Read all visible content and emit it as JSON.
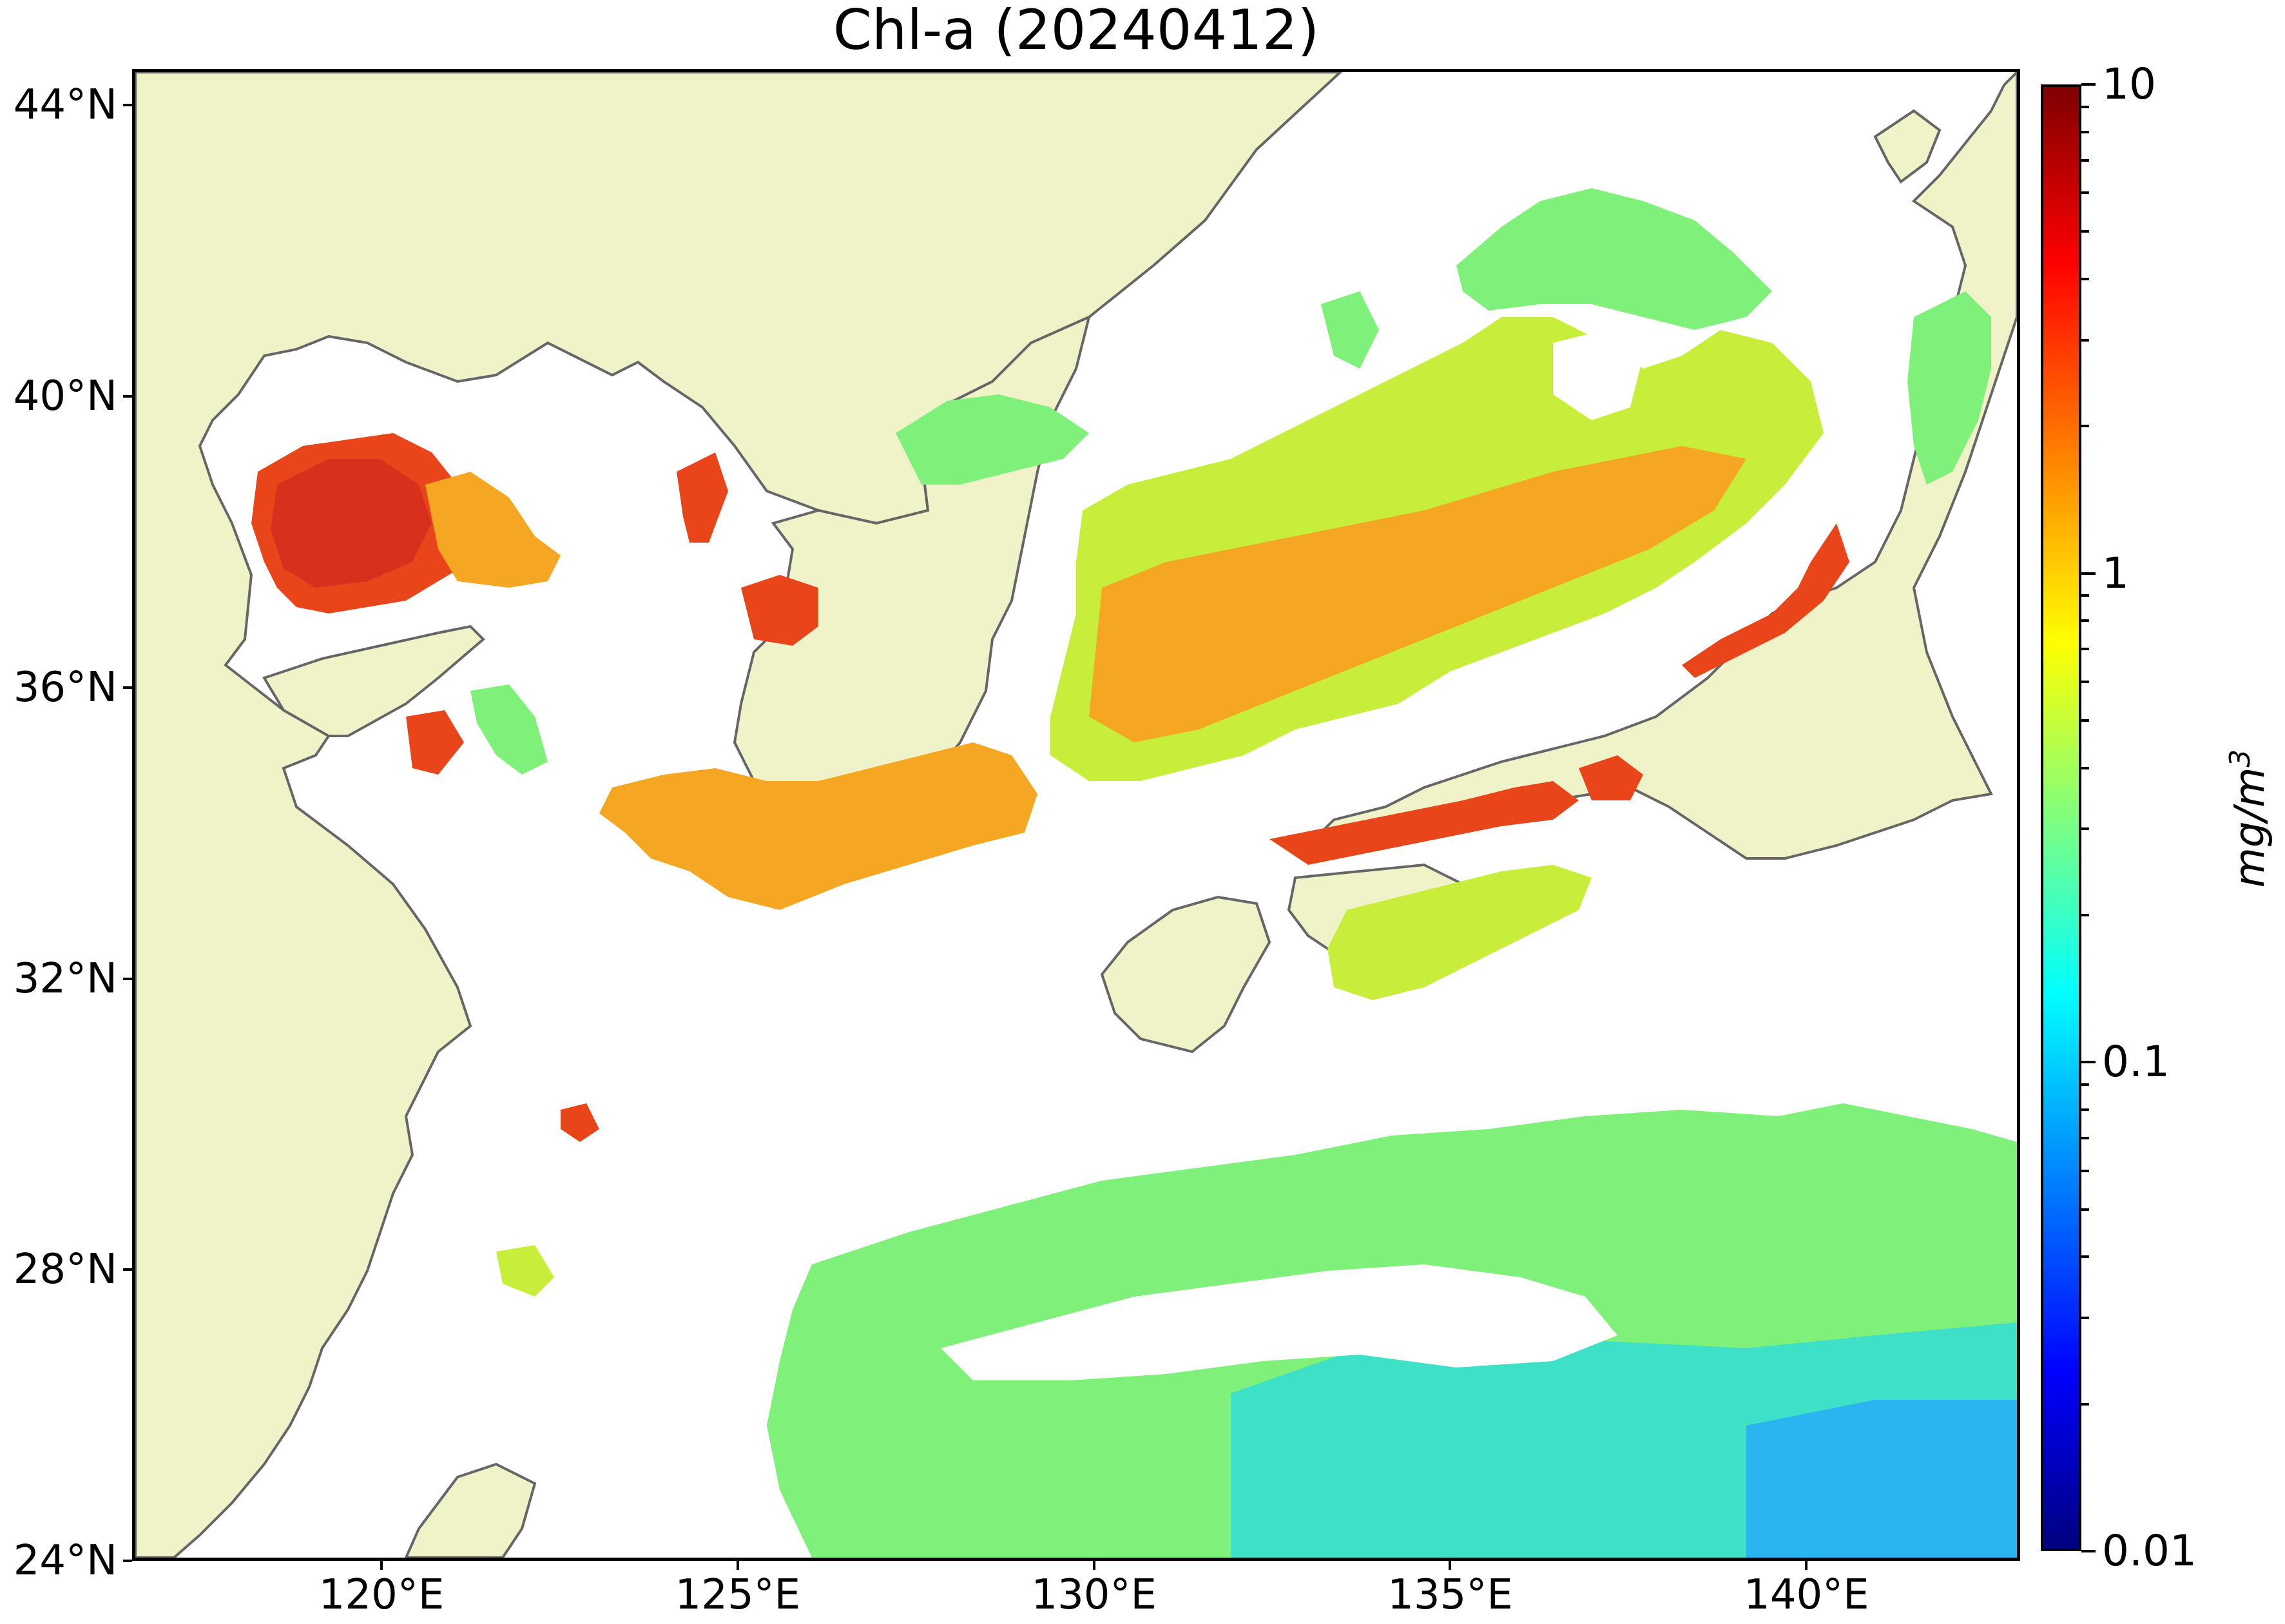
{
  "title": "Chl-a (20240412)",
  "y_axis": {
    "ticks": [
      {
        "label": "44°N",
        "lat": 44
      },
      {
        "label": "40°N",
        "lat": 40
      },
      {
        "label": "36°N",
        "lat": 36
      },
      {
        "label": "32°N",
        "lat": 32
      },
      {
        "label": "28°N",
        "lat": 28
      },
      {
        "label": "24°N",
        "lat": 24
      }
    ]
  },
  "x_axis": {
    "ticks": [
      {
        "label": "120°E",
        "lon": 120
      },
      {
        "label": "125°E",
        "lon": 125
      },
      {
        "label": "130°E",
        "lon": 130
      },
      {
        "label": "135°E",
        "lon": 135
      },
      {
        "label": "140°E",
        "lon": 140
      }
    ]
  },
  "extent": {
    "lon": [
      116.5,
      143.0
    ],
    "lat": [
      24.0,
      44.5
    ]
  },
  "colorbar": {
    "scale": "log",
    "colormap": "jet",
    "min": 0.01,
    "max": 10,
    "major_labels": [
      {
        "label": "10",
        "value": 10
      },
      {
        "label": "1",
        "value": 1
      },
      {
        "label": "0.1",
        "value": 0.1
      },
      {
        "label": "0.01",
        "value": 0.01
      }
    ],
    "unit_text": "mg/m",
    "unit_superscript": "3"
  },
  "colors": {
    "land": "#f0f2c8",
    "coastline": "#666666",
    "no_data": "#ffffff",
    "high_chl": "#e8451a",
    "mid_chl": "#f5a623",
    "moderate_chl": "#c8ee3c",
    "low_chl": "#7ff07a",
    "open_ocean": "#3fe0c8",
    "very_low": "#2ab4f0"
  }
}
